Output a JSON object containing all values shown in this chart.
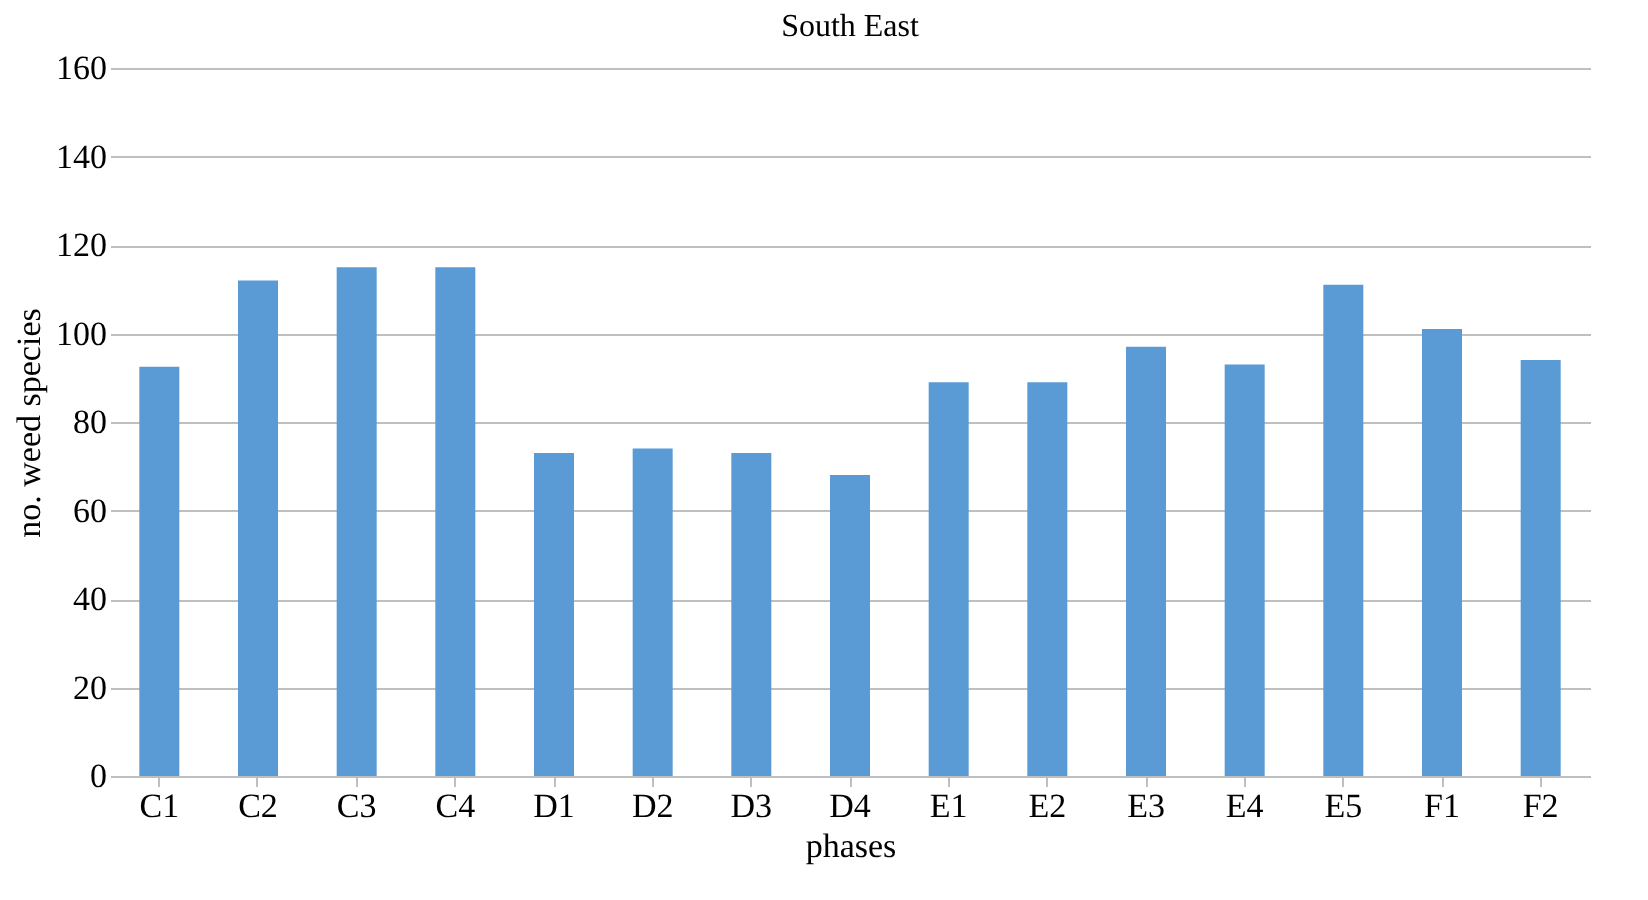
{
  "chart_data": {
    "type": "bar",
    "title": "South East",
    "xlabel": "phases",
    "ylabel": "no. weed species",
    "categories": [
      "C1",
      "C2",
      "C3",
      "C4",
      "D1",
      "D2",
      "D3",
      "D4",
      "E1",
      "E2",
      "E3",
      "E4",
      "E5",
      "F1",
      "F2"
    ],
    "series": [
      {
        "color": "#5b9bd5",
        "values": [
          92.5,
          112,
          115,
          115,
          73,
          74,
          73,
          68,
          89,
          89,
          97,
          93,
          111,
          101,
          94
        ]
      }
    ],
    "ylim": [
      0,
      160
    ],
    "yticks": [
      0,
      20,
      40,
      60,
      80,
      100,
      120,
      140,
      160
    ],
    "grid": "y",
    "legend": false
  }
}
